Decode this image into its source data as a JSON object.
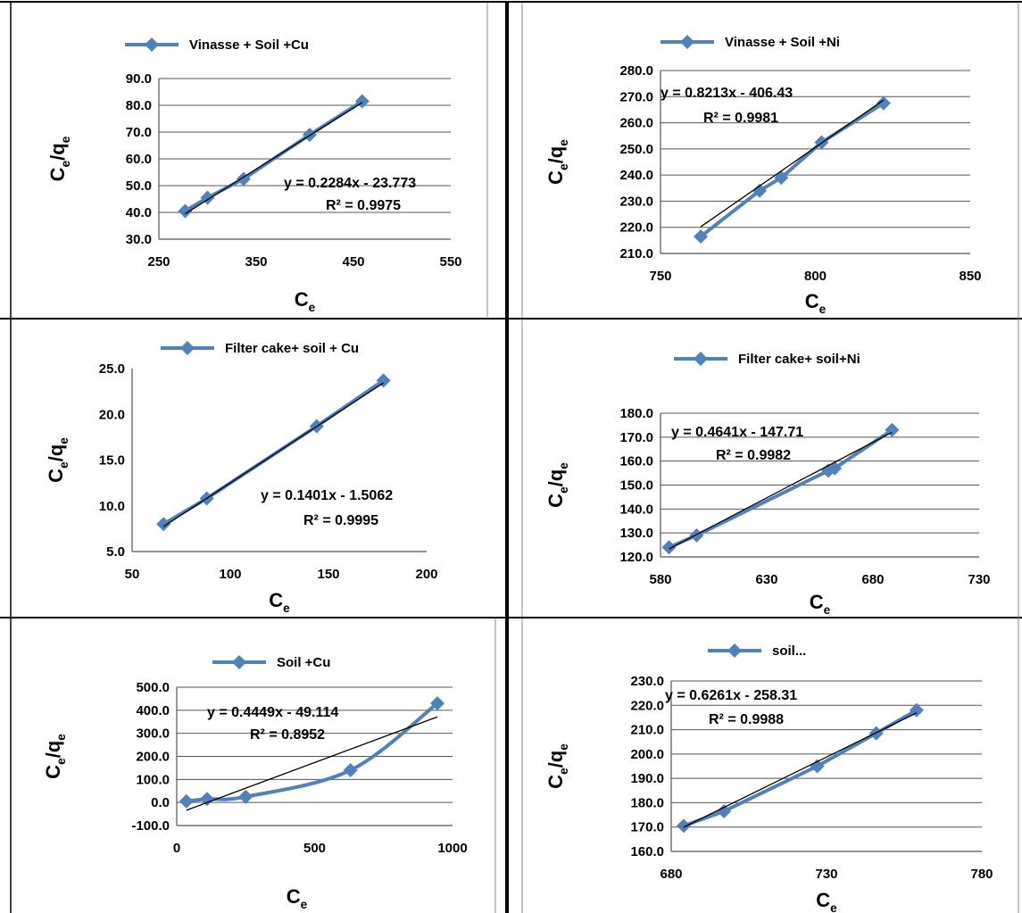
{
  "figure": {
    "background": "#ffffff",
    "series_color": "#4f81bd",
    "trendline_color": "#000000",
    "grid_color": "#555555"
  },
  "chart_data": [
    {
      "type": "line",
      "legend": "Vinasse + Soil +Cu",
      "xlabel": "Ce",
      "ylabel": "Ce/qe",
      "xlim": [
        250,
        550
      ],
      "xticks": [
        250,
        350,
        450,
        550
      ],
      "xtick_labels": [
        "250",
        "350",
        "450",
        "550"
      ],
      "ylim": [
        30,
        90
      ],
      "yticks": [
        30,
        40,
        50,
        60,
        70,
        80,
        90
      ],
      "ytick_labels": [
        "30.0",
        "40.0",
        "50.0",
        "60.0",
        "70.0",
        "80.0",
        "90.0"
      ],
      "grid": "horizontal",
      "x": [
        277,
        300,
        337,
        405,
        459
      ],
      "y": [
        40.5,
        45.5,
        52.5,
        69.0,
        81.5
      ],
      "trendline": {
        "slope": 0.2284,
        "intercept": -23.773,
        "x_range": [
          277,
          459
        ]
      },
      "equation": "y = 0.2284x - 23.773",
      "r2": "R² = 0.9975"
    },
    {
      "type": "line",
      "legend": "Vinasse + Soil +Ni",
      "xlabel": "Ce",
      "ylabel": "Ce/qe",
      "xlim": [
        750,
        850
      ],
      "xticks": [
        750,
        800,
        850
      ],
      "xtick_labels": [
        "750",
        "800",
        "850"
      ],
      "ylim": [
        210,
        280
      ],
      "yticks": [
        210,
        220,
        230,
        240,
        250,
        260,
        270,
        280
      ],
      "ytick_labels": [
        "210.0",
        "220.0",
        "230.0",
        "240.0",
        "250.0",
        "260.0",
        "270.0",
        "280.0"
      ],
      "grid": "horizontal",
      "x": [
        763,
        782,
        789,
        802,
        822
      ],
      "y": [
        216.5,
        234,
        239,
        252.5,
        267.5
      ],
      "trendline": {
        "slope": 0.8213,
        "intercept": -406.43,
        "x_range": [
          763,
          822
        ]
      },
      "equation": "y = 0.8213x - 406.43",
      "r2": "R² = 0.9981"
    },
    {
      "type": "line",
      "legend": "Filter cake+ soil + Cu",
      "xlabel": "Ce",
      "ylabel": "Ce/qe",
      "xlim": [
        50,
        200
      ],
      "xticks": [
        50,
        100,
        150,
        200
      ],
      "xtick_labels": [
        "50",
        "100",
        "150",
        "200"
      ],
      "ylim": [
        5,
        25
      ],
      "yticks": [
        5,
        10,
        15,
        20,
        25
      ],
      "ytick_labels": [
        "5.0",
        "10.0",
        "15.0",
        "20.0",
        "25.0"
      ],
      "grid": "none",
      "x": [
        66,
        88,
        144,
        178
      ],
      "y": [
        8.0,
        10.8,
        18.7,
        23.7
      ],
      "trendline": {
        "slope": 0.1401,
        "intercept": -1.5062,
        "x_range": [
          66,
          178
        ]
      },
      "equation": "y = 0.1401x - 1.5062",
      "r2": "R² = 0.9995"
    },
    {
      "type": "line",
      "legend": "Filter cake+ soil+Ni",
      "xlabel": "Ce",
      "ylabel": "Ce/qe",
      "xlim": [
        580,
        730
      ],
      "xticks": [
        580,
        630,
        680,
        730
      ],
      "xtick_labels": [
        "580",
        "630",
        "680",
        "730"
      ],
      "ylim": [
        120,
        180
      ],
      "yticks": [
        120,
        130,
        140,
        150,
        160,
        170,
        180
      ],
      "ytick_labels": [
        "120.0",
        "130.0",
        "140.0",
        "150.0",
        "160.0",
        "170.0",
        "180.0"
      ],
      "grid": "horizontal",
      "x": [
        584,
        597,
        659,
        662,
        689
      ],
      "y": [
        124,
        129,
        156,
        157,
        173
      ],
      "trendline": {
        "slope": 0.4641,
        "intercept": -147.71,
        "x_range": [
          584,
          689
        ]
      },
      "equation": "y = 0.4641x - 147.71",
      "r2": "R² = 0.9982"
    },
    {
      "type": "line",
      "legend": "Soil +Cu",
      "xlabel": "Ce",
      "ylabel": "Ce/qe",
      "xlim": [
        0,
        1000
      ],
      "xticks": [
        0,
        500,
        1000
      ],
      "xtick_labels": [
        "0",
        "500",
        "1000"
      ],
      "ylim": [
        -100,
        500
      ],
      "yticks": [
        -100,
        0,
        100,
        200,
        300,
        400,
        500
      ],
      "ytick_labels": [
        "-100.0",
        "0.0",
        "100.0",
        "200.0",
        "300.0",
        "400.0",
        "500.0"
      ],
      "grid": "horizontal",
      "x": [
        35,
        110,
        250,
        630,
        945
      ],
      "y": [
        5,
        15,
        25,
        140,
        430
      ],
      "smooth": true,
      "trendline": {
        "slope": 0.4449,
        "intercept": -49.114,
        "x_range": [
          35,
          945
        ]
      },
      "equation": "y = 0.4449x - 49.114",
      "r2": "R² = 0.8952"
    },
    {
      "type": "line",
      "legend": "soil...",
      "xlabel": "Ce",
      "ylabel": "Ce/qe",
      "xlim": [
        680,
        780
      ],
      "xticks": [
        680,
        730,
        780
      ],
      "xtick_labels": [
        "680",
        "730",
        "780"
      ],
      "ylim": [
        160,
        230
      ],
      "yticks": [
        160,
        170,
        180,
        190,
        200,
        210,
        220,
        230
      ],
      "ytick_labels": [
        "160.0",
        "170.0",
        "180.0",
        "190.0",
        "200.0",
        "210.0",
        "220.0",
        "230.0"
      ],
      "grid": "horizontal",
      "x": [
        684,
        697,
        727,
        746,
        759
      ],
      "y": [
        170.5,
        176.5,
        195,
        208.5,
        218
      ],
      "trendline": {
        "slope": 0.6261,
        "intercept": -258.31,
        "x_range": [
          684,
          759
        ]
      },
      "equation": "y = 0.6261x - 258.31",
      "r2": "R² = 0.9988"
    }
  ]
}
